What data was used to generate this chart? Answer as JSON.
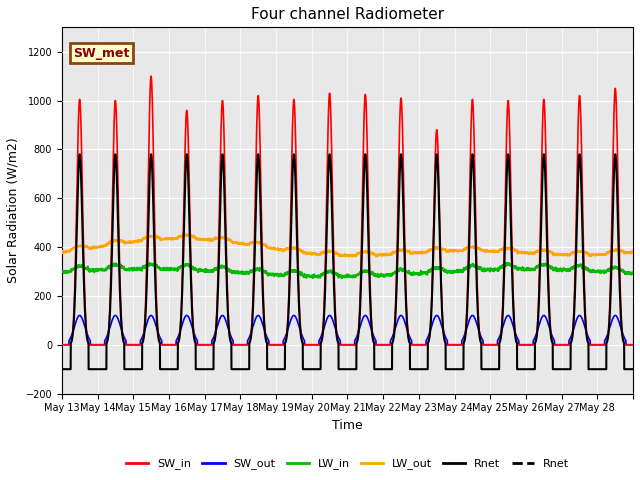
{
  "title": "Four channel Radiometer",
  "xlabel": "Time",
  "ylabel": "Solar Radiation (W/m2)",
  "ylim": [
    -200,
    1300
  ],
  "yticks": [
    -200,
    0,
    200,
    400,
    600,
    800,
    1000,
    1200
  ],
  "background_color": "#ffffff",
  "plot_bg_color": "#e8e8e8",
  "annotation_text": "SW_met",
  "annotation_bg": "#ffffcc",
  "annotation_border": "#8B4513",
  "legend_entries": [
    "SW_in",
    "SW_out",
    "LW_in",
    "LW_out",
    "Rnet",
    "Rnet"
  ],
  "legend_colors": [
    "#ff0000",
    "#0000ff",
    "#00bb00",
    "#ffa500",
    "#000000",
    "#000000"
  ],
  "n_days": 16,
  "day_start": 13,
  "x_tick_labels": [
    "May 13",
    "May 14",
    "May 15",
    "May 16",
    "May 17",
    "May 18",
    "May 19",
    "May 20",
    "May 21",
    "May 22",
    "May 23",
    "May 24",
    "May 25",
    "May 26",
    "May 27",
    "May 28"
  ]
}
